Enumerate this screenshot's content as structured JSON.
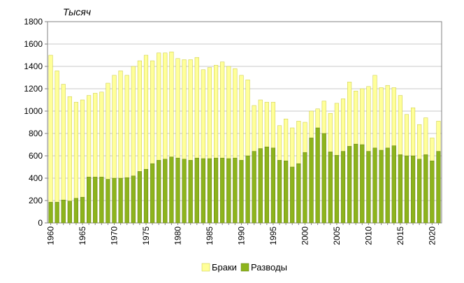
{
  "chart_data": {
    "type": "bar",
    "subtype": "overlapping",
    "unit_label": "Тысяч",
    "ylim": [
      0,
      1800
    ],
    "ytick_values": [
      0,
      200,
      400,
      600,
      800,
      1000,
      1200,
      1400,
      1600,
      1800
    ],
    "grid": true,
    "legend_position": "bottom",
    "x": [
      1960,
      1961,
      1962,
      1963,
      1964,
      1965,
      1966,
      1967,
      1968,
      1969,
      1970,
      1971,
      1972,
      1973,
      1974,
      1975,
      1976,
      1977,
      1978,
      1979,
      1980,
      1981,
      1982,
      1983,
      1984,
      1985,
      1986,
      1987,
      1988,
      1989,
      1990,
      1991,
      1992,
      1993,
      1994,
      1995,
      1996,
      1997,
      1998,
      1999,
      2000,
      2001,
      2002,
      2003,
      2004,
      2005,
      2006,
      2007,
      2008,
      2009,
      2010,
      2011,
      2012,
      2013,
      2014,
      2015,
      2016,
      2017,
      2018,
      2019,
      2020,
      2021
    ],
    "x_tick_labels": [
      "1960",
      "1965",
      "1970",
      "1975",
      "1980",
      "1985",
      "1990",
      "1995",
      "2000",
      "2005",
      "2010",
      "2015",
      "2020"
    ],
    "series": [
      {
        "name": "Браки",
        "color": "#ffff99",
        "border": "#c8c840",
        "values": [
          1500,
          1360,
          1240,
          1130,
          1080,
          1100,
          1140,
          1160,
          1170,
          1250,
          1320,
          1360,
          1320,
          1400,
          1450,
          1500,
          1450,
          1520,
          1520,
          1530,
          1470,
          1460,
          1460,
          1480,
          1370,
          1390,
          1410,
          1440,
          1400,
          1380,
          1320,
          1280,
          1050,
          1100,
          1080,
          1080,
          870,
          930,
          850,
          910,
          900,
          1000,
          1020,
          1090,
          980,
          1070,
          1110,
          1260,
          1180,
          1200,
          1220,
          1320,
          1210,
          1230,
          1210,
          1140,
          970,
          1030,
          880,
          940,
          760,
          910
        ]
      },
      {
        "name": "Разводы",
        "color": "#8db41c",
        "border": "#5e7a10",
        "values": [
          185,
          185,
          205,
          195,
          220,
          230,
          410,
          410,
          410,
          390,
          400,
          400,
          405,
          420,
          460,
          480,
          530,
          560,
          570,
          590,
          580,
          570,
          560,
          580,
          575,
          575,
          580,
          580,
          575,
          580,
          560,
          600,
          640,
          665,
          680,
          670,
          560,
          555,
          500,
          530,
          630,
          760,
          850,
          800,
          635,
          605,
          640,
          685,
          705,
          700,
          640,
          670,
          650,
          670,
          690,
          610,
          600,
          600,
          570,
          610,
          555,
          640
        ]
      }
    ]
  }
}
